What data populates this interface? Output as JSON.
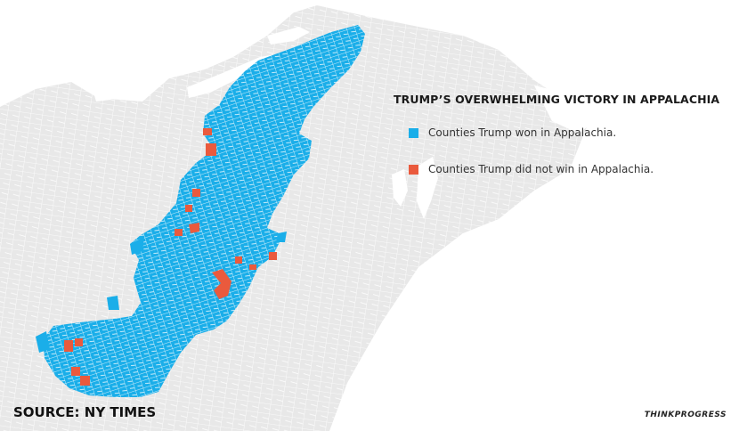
{
  "map": {
    "title": "TRUMP’S OVERWHELMING VICTORY IN APPALACHIA",
    "region": "Appalachia",
    "legend": [
      {
        "label": "Counties Trump won in Appalachia.",
        "color": "#1aaee9"
      },
      {
        "label": "Counties Trump did not win in Appalachia.",
        "color": "#ea5a3d"
      }
    ],
    "colors": {
      "land": "#e9e9e9",
      "county_lines": "#ffffff",
      "water": "#ffffff",
      "won": "#1aaee9",
      "not_won": "#ea5a3d"
    }
  },
  "footer": {
    "source": "SOURCE: NY TIMES",
    "brand": "THINKPROGRESS"
  }
}
